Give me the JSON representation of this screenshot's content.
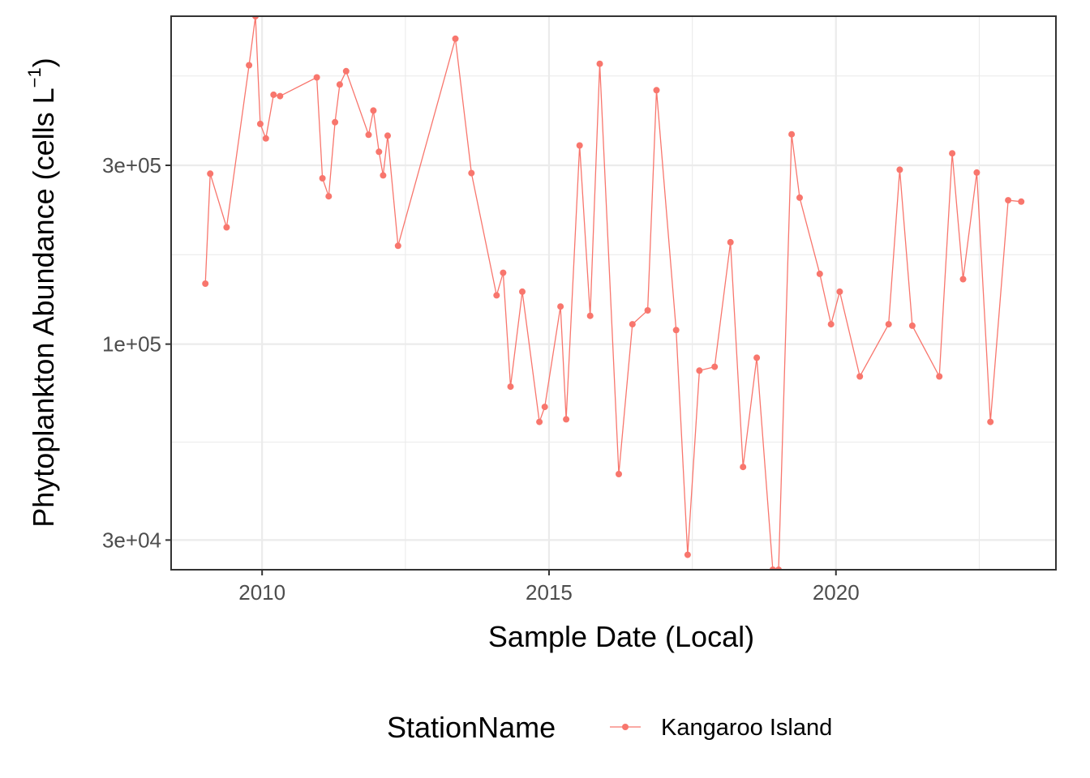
{
  "chart_data": {
    "type": "line",
    "xlabel": "Sample Date (Local)",
    "ylabel": "Phytoplankton Abundance (cells L",
    "ylabel_sup": "−1",
    "ylabel_close": ")",
    "y_scale": "log10",
    "ylim": [
      25000,
      750000
    ],
    "xlim": [
      "2008-06-01",
      "2023-11-01"
    ],
    "x_ticks": [
      "2010",
      "2015",
      "2020"
    ],
    "y_ticks": [
      "3e+04",
      "1e+05",
      "3e+05"
    ],
    "grid": true,
    "legend": {
      "title": "StationName",
      "position": "bottom"
    },
    "series": [
      {
        "name": "Kangaroo Island",
        "color": "#F8766D",
        "x": [
          "2009-01-05",
          "2009-02-05",
          "2009-05-20",
          "2009-10-10",
          "2009-11-20",
          "2009-12-20",
          "2010-01-25",
          "2010-03-15",
          "2010-04-25",
          "2010-12-15",
          "2011-01-20",
          "2011-03-01",
          "2011-04-10",
          "2011-05-10",
          "2011-06-20",
          "2011-11-10",
          "2011-12-10",
          "2012-01-15",
          "2012-02-10",
          "2012-03-10",
          "2012-05-15",
          "2013-05-15",
          "2013-08-25",
          "2014-02-01",
          "2014-03-15",
          "2014-05-01",
          "2014-07-15",
          "2014-11-01",
          "2014-12-05",
          "2015-03-15",
          "2015-04-20",
          "2015-07-15",
          "2015-09-20",
          "2015-11-20",
          "2016-03-20",
          "2016-06-15",
          "2016-09-20",
          "2016-11-15",
          "2017-03-20",
          "2017-06-01",
          "2017-08-15",
          "2017-11-20",
          "2018-03-01",
          "2018-05-20",
          "2018-08-15",
          "2018-11-25",
          "2019-01-01",
          "2019-03-25",
          "2019-05-15",
          "2019-09-20",
          "2019-12-01",
          "2020-01-25",
          "2020-06-01",
          "2020-12-01",
          "2021-02-10",
          "2021-05-01",
          "2021-10-20",
          "2022-01-10",
          "2022-03-20",
          "2022-06-15",
          "2022-09-10",
          "2023-01-01",
          "2023-03-25"
        ],
        "y": [
          145000,
          285000,
          205000,
          555000,
          750000,
          387000,
          354000,
          463000,
          459000,
          515000,
          277000,
          248000,
          391000,
          493000,
          535000,
          362000,
          420000,
          326000,
          282000,
          360000,
          183000,
          653000,
          286000,
          135000,
          155000,
          77000,
          138000,
          62000,
          68000,
          126000,
          63000,
          339000,
          119000,
          560000,
          45000,
          113000,
          123000,
          476000,
          109000,
          27400,
          85000,
          87000,
          187000,
          47000,
          92000,
          25000,
          25000,
          363000,
          246000,
          154000,
          113000,
          138000,
          82000,
          113000,
          292000,
          112000,
          82000,
          323000,
          149000,
          287000,
          62000,
          242000,
          240000
        ]
      }
    ]
  }
}
